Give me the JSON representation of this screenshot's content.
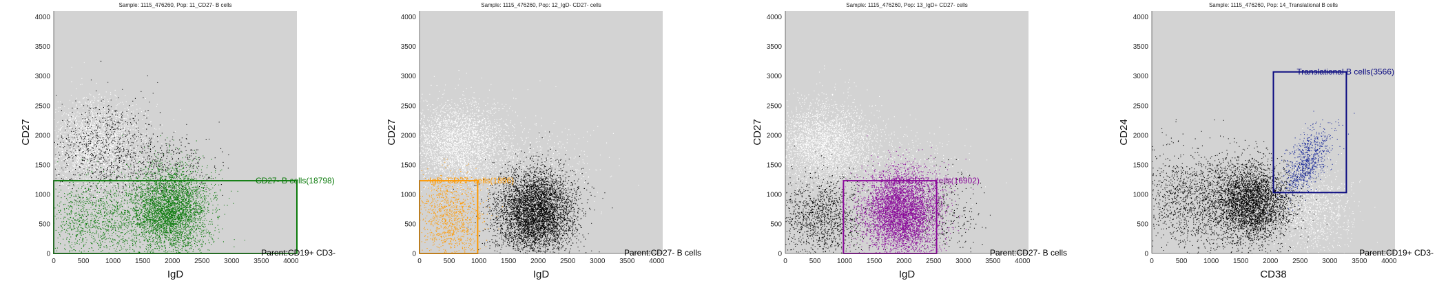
{
  "chart_data": [
    {
      "type": "scatter",
      "title": "Sample: 1115_476260, Pop: 11_CD27- B cells",
      "xlabel": "IgD",
      "ylabel": "CD27",
      "xlim": [
        0,
        4100
      ],
      "ylim": [
        0,
        4100
      ],
      "xticks": [
        "0",
        "500",
        "1000",
        "1500",
        "2000",
        "2500",
        "3000",
        "3500",
        "4000"
      ],
      "yticks": [
        "0",
        "500",
        "1000",
        "1500",
        "2000",
        "2500",
        "3000",
        "3500",
        "4000"
      ],
      "grid": false,
      "background_color": "#d3d3d3",
      "gate": {
        "label": "CD27- B cells(18798)",
        "color": "#0a7a0a",
        "x": [
          0,
          4100
        ],
        "y": [
          0,
          1230
        ]
      },
      "parent_label": "Parent:CD19+ CD3-",
      "series": [
        {
          "color": "#ffffff",
          "clusters": [
            {
              "cx": 700,
              "cy": 1820,
              "sx": 420,
              "sy": 380,
              "n": 2600
            }
          ]
        },
        {
          "color": "#000000",
          "clusters": [
            {
              "cx": 820,
              "cy": 1750,
              "sx": 480,
              "sy": 420,
              "n": 900
            },
            {
              "cx": 1950,
              "cy": 1500,
              "sx": 450,
              "sy": 250,
              "n": 350
            }
          ]
        },
        {
          "color": "#0a7a0a",
          "clusters": [
            {
              "cx": 1950,
              "cy": 720,
              "sx": 330,
              "sy": 360,
              "n": 4200
            },
            {
              "cx": 750,
              "cy": 600,
              "sx": 500,
              "sy": 330,
              "n": 1300
            }
          ]
        }
      ]
    },
    {
      "type": "scatter",
      "title": "Sample: 1115_476260, Pop: 12_IgD- CD27- cells",
      "xlabel": "IgD",
      "ylabel": "CD27",
      "xlim": [
        0,
        4100
      ],
      "ylim": [
        0,
        4100
      ],
      "xticks": [
        "0",
        "500",
        "1000",
        "1500",
        "2000",
        "2500",
        "3000",
        "3500",
        "4000"
      ],
      "yticks": [
        "0",
        "500",
        "1000",
        "1500",
        "2000",
        "2500",
        "3000",
        "3500",
        "4000"
      ],
      "grid": false,
      "background_color": "#d3d3d3",
      "gate": {
        "label": "IgD- CD27- cells(1896)",
        "color": "#ff9900",
        "x": [
          0,
          980
        ],
        "y": [
          0,
          1230
        ]
      },
      "parent_label": "Parent:CD27- B cells",
      "series": [
        {
          "color": "#ffffff",
          "clusters": [
            {
              "cx": 650,
              "cy": 1850,
              "sx": 420,
              "sy": 350,
              "n": 3200
            },
            {
              "cx": 1900,
              "cy": 1500,
              "sx": 600,
              "sy": 300,
              "n": 500
            }
          ]
        },
        {
          "color": "#000000",
          "clusters": [
            {
              "cx": 1950,
              "cy": 700,
              "sx": 330,
              "sy": 360,
              "n": 5200
            }
          ]
        },
        {
          "color": "#ff9900",
          "clusters": [
            {
              "cx": 520,
              "cy": 600,
              "sx": 260,
              "sy": 340,
              "n": 1100
            }
          ]
        }
      ]
    },
    {
      "type": "scatter",
      "title": "Sample: 1115_476260, Pop: 13_IgD+ CD27- cells",
      "xlabel": "IgD",
      "ylabel": "CD27",
      "xlim": [
        0,
        4100
      ],
      "ylim": [
        0,
        4100
      ],
      "xticks": [
        "0",
        "500",
        "1000",
        "1500",
        "2000",
        "2500",
        "3000",
        "3500",
        "4000"
      ],
      "yticks": [
        "0",
        "500",
        "1000",
        "1500",
        "2000",
        "2500",
        "3000",
        "3500",
        "4000"
      ],
      "grid": false,
      "background_color": "#d3d3d3",
      "gate": {
        "label": "IgD+ CD27- cells(16902)",
        "color": "#8a0a9a",
        "x": [
          980,
          2550
        ],
        "y": [
          0,
          1230
        ]
      },
      "parent_label": "Parent:CD27- B cells",
      "series": [
        {
          "color": "#ffffff",
          "clusters": [
            {
              "cx": 650,
              "cy": 1850,
              "sx": 420,
              "sy": 350,
              "n": 3200
            },
            {
              "cx": 1900,
              "cy": 1500,
              "sx": 600,
              "sy": 300,
              "n": 400
            }
          ]
        },
        {
          "color": "#000000",
          "clusters": [
            {
              "cx": 600,
              "cy": 600,
              "sx": 380,
              "sy": 360,
              "n": 1400
            },
            {
              "cx": 2700,
              "cy": 700,
              "sx": 300,
              "sy": 400,
              "n": 300
            }
          ]
        },
        {
          "color": "#8a0a9a",
          "clusters": [
            {
              "cx": 1950,
              "cy": 700,
              "sx": 320,
              "sy": 360,
              "n": 5200
            }
          ]
        }
      ]
    },
    {
      "type": "scatter",
      "title": "Sample: 1115_476260, Pop: 14_Translational B cells",
      "xlabel": "CD38",
      "ylabel": "CD24",
      "xlim": [
        0,
        4100
      ],
      "ylim": [
        0,
        4100
      ],
      "xticks": [
        "0",
        "500",
        "1000",
        "1500",
        "2000",
        "2500",
        "3000",
        "3500",
        "4000"
      ],
      "yticks": [
        "0",
        "500",
        "1000",
        "1500",
        "2000",
        "2500",
        "3000",
        "3500",
        "4000"
      ],
      "grid": false,
      "background_color": "#d3d3d3",
      "gate": {
        "label": "Translational B cells(3566)",
        "color": "#0a0a80",
        "x": [
          2050,
          3280
        ],
        "y": [
          1030,
          3070
        ]
      },
      "parent_label": "Parent:CD19+ CD3-",
      "series": [
        {
          "color": "#ffffff",
          "clusters": [
            {
              "cx": 2700,
              "cy": 700,
              "sx": 350,
              "sy": 350,
              "n": 1200
            }
          ]
        },
        {
          "color": "#000000",
          "clusters": [
            {
              "cx": 1700,
              "cy": 850,
              "sx": 320,
              "sy": 320,
              "n": 3600
            },
            {
              "cx": 800,
              "cy": 900,
              "sx": 550,
              "sy": 420,
              "n": 1800
            }
          ]
        },
        {
          "color": "#1a2a9a",
          "clusters": [
            {
              "cx": 2600,
              "cy": 1550,
              "sx": 200,
              "sy": 280,
              "n": 800,
              "rho": 0.6
            }
          ]
        }
      ]
    }
  ]
}
